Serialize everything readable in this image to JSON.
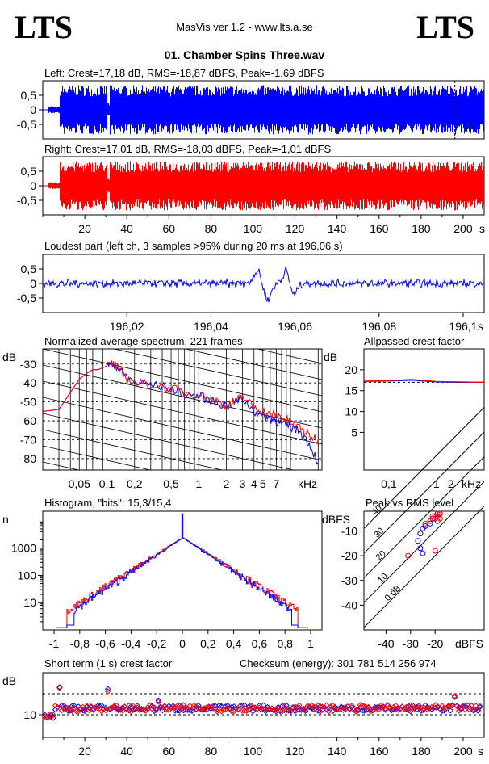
{
  "header": {
    "logo_left": "LTS",
    "logo_right": "LTS",
    "app": "MasVis ver 1.2 - www.lts.a.se",
    "file": "01. Chamber Spins Three.wav"
  },
  "colors": {
    "left": "#0000ff",
    "right": "#ff0000",
    "grid": "#000000"
  },
  "chart_data": [
    {
      "type": "area",
      "id": "left-waveform",
      "title": "Left: Crest=17,18 dB, RMS=-18,87 dBFS, Peak=-1,69 dBFS",
      "ylim": [
        -1,
        1
      ],
      "yticks": [
        "0,5",
        "0",
        "-0,5"
      ],
      "x_range": [
        0,
        210
      ],
      "silent_until": 2,
      "quiet_until": 8,
      "gap_at": 31,
      "marker_at": 196.06,
      "envelope": 0.85
    },
    {
      "type": "area",
      "id": "right-waveform",
      "title": "Right: Crest=17,01 dB, RMS=-18,03 dBFS, Peak=-1,01 dBFS",
      "ylim": [
        -1,
        1
      ],
      "yticks": [
        "0,5",
        "0",
        "-0,5"
      ],
      "x_range": [
        0,
        210
      ],
      "xticks": [
        "20",
        "40",
        "60",
        "80",
        "100",
        "120",
        "140",
        "160",
        "180",
        "200"
      ],
      "xunit": "s",
      "silent_until": 2,
      "quiet_until": 8,
      "gap_at": 31,
      "envelope": 0.85
    },
    {
      "type": "line",
      "id": "loudest-part",
      "title": "Loudest part (left  ch, 3 samples >95% during 20 ms at 196,06 s)",
      "ylim": [
        -1,
        1
      ],
      "yticks": [
        "0,5",
        "0",
        "-0,5"
      ],
      "x_range": [
        196.0,
        196.105
      ],
      "xticks": [
        "196,02",
        "196,04",
        "196,06",
        "196,08",
        "196,1"
      ],
      "xunit": "s",
      "events": [
        {
          "t": 196.051,
          "amp": 0.45
        },
        {
          "t": 196.0535,
          "amp": -0.55
        },
        {
          "t": 196.058,
          "amp": 0.5
        },
        {
          "t": 196.0595,
          "amp": -0.45
        }
      ]
    },
    {
      "type": "line",
      "id": "average-spectrum",
      "title": "Normalized average spectrum, 221 frames",
      "ylabel": "dB",
      "yticks": [
        "-30",
        "-40",
        "-50",
        "-60",
        "-70",
        "-80"
      ],
      "xticks": [
        "0,05",
        "0,1",
        "0,2",
        "0,5",
        "1",
        "2",
        "3",
        "4",
        "5",
        "7"
      ],
      "xunit": "kHz",
      "x_khz": [
        0.02,
        0.03,
        0.04,
        0.05,
        0.06,
        0.07,
        0.08,
        0.1,
        0.12,
        0.15,
        0.2,
        0.3,
        0.5,
        0.7,
        1,
        1.5,
        2,
        2.5,
        3,
        4,
        5,
        6,
        7,
        8,
        10,
        13,
        16,
        20
      ],
      "series": [
        {
          "values": [
            -55,
            -54,
            -45,
            -38,
            -35,
            -33,
            -33,
            -31,
            -30,
            -35,
            -40,
            -41,
            -43,
            -46,
            -47,
            -50,
            -52,
            -50,
            -48,
            -55,
            -57,
            -59,
            -60,
            -62,
            -63,
            -66,
            -72,
            -82
          ]
        },
        {
          "values": [
            -55,
            -54,
            -45,
            -38,
            -35,
            -33,
            -33,
            -31,
            -30,
            -36,
            -40,
            -41,
            -43,
            -45,
            -46,
            -49,
            -52,
            -50,
            -47,
            -53,
            -55,
            -57,
            -57,
            -58,
            -61,
            -64,
            -68,
            -70
          ]
        }
      ]
    },
    {
      "type": "line",
      "id": "allpassed-crest",
      "title": "Allpassed crest factor",
      "ylabel": "dB",
      "yticks": [
        "20",
        "15",
        "10",
        "5"
      ],
      "xticks": [
        "0,1",
        "1",
        "2",
        "kHz"
      ],
      "x_khz": [
        0.03,
        0.1,
        0.3,
        1,
        3,
        10
      ],
      "series": [
        {
          "values": [
            17.2,
            17.3,
            17.5,
            17.1,
            17.0,
            17.0
          ]
        },
        {
          "values": [
            17.3,
            17.4,
            17.7,
            17.2,
            17.1,
            17.0
          ]
        }
      ]
    },
    {
      "type": "line",
      "id": "histogram",
      "title": "Histogram, \"bits\": 15,3/15,4",
      "ylabel": "n",
      "yticks": [
        "1000",
        "100",
        "10"
      ],
      "xticks": [
        "-1",
        "-0,8",
        "-0,6",
        "-0,4",
        "-0,2",
        "0",
        "0,2",
        "0,4",
        "0,6",
        "0,8",
        "1"
      ],
      "peak_count": 2400,
      "spike_count": 18000,
      "width": 0.2
    },
    {
      "type": "scatter",
      "id": "peak-vs-rms",
      "title": "Peak vs RMS level",
      "ylabel": "dBFS",
      "xlabel": "dBFS",
      "yticks": [
        "-10",
        "-20",
        "-30",
        "-40"
      ],
      "xticks": [
        "-40",
        "-30",
        "-20"
      ],
      "diagonal_labels": [
        "40",
        "30",
        "20",
        "10",
        "0 dB"
      ],
      "series": [
        {
          "x": [
            -26,
            -25,
            -24,
            -22,
            -21,
            -20,
            -20,
            -19,
            -19,
            -18,
            -27,
            -26,
            -25
          ],
          "y": [
            -11,
            -9,
            -8,
            -7,
            -5,
            -5,
            -4,
            -4,
            -3,
            -3,
            -14,
            -17,
            -19
          ]
        },
        {
          "x": [
            -31,
            -24,
            -22,
            -21,
            -20,
            -19,
            -19,
            -18,
            -18,
            -20,
            -19,
            -21
          ],
          "y": [
            -20,
            -7,
            -6,
            -5,
            -4,
            -4,
            -3,
            -3,
            -5,
            -18,
            -6,
            -4
          ]
        }
      ]
    },
    {
      "type": "scatter",
      "id": "short-term-crest",
      "title": "Short term (1 s) crest factor",
      "checksum": "Checksum (energy):   301 781 514 256 974",
      "ylabel": "dB",
      "yticks": [
        "10"
      ],
      "xticks": [
        "20",
        "40",
        "60",
        "80",
        "100",
        "120",
        "140",
        "160",
        "180",
        "200"
      ],
      "xunit": "s",
      "baseline": 12,
      "outliers": [
        {
          "t": 8,
          "v": 19
        },
        {
          "t": 31,
          "v": 18
        },
        {
          "t": 55,
          "v": 15
        },
        {
          "t": 196,
          "v": 16
        }
      ]
    }
  ]
}
